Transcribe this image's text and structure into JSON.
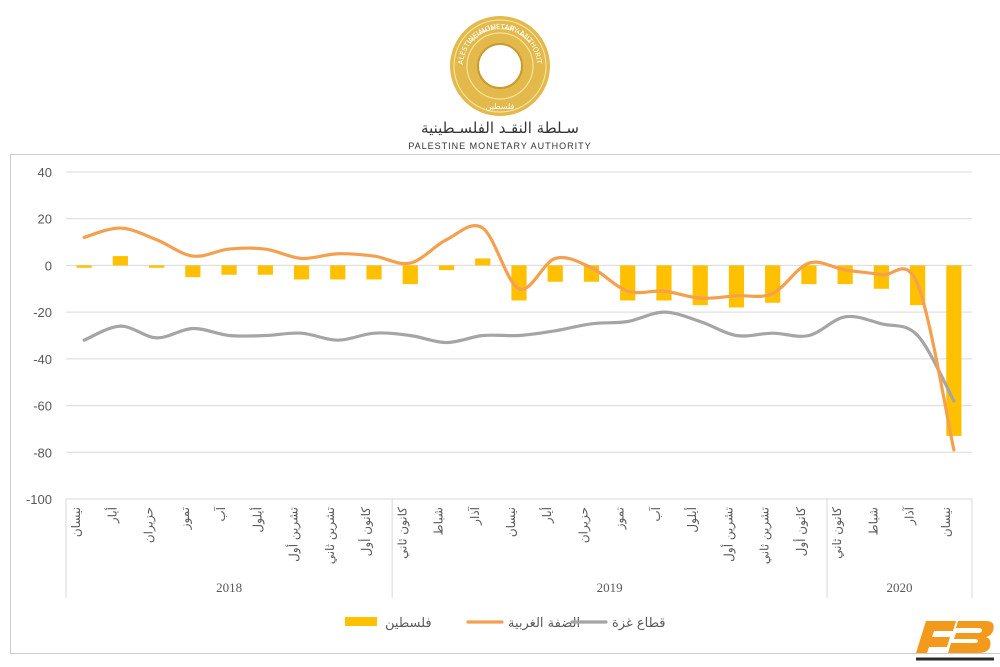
{
  "header": {
    "org_name_ar": "سـلطة النقـد الفلسـطينية",
    "org_name_en": "PALESTINE MONETARY AUTHORITY",
    "seal_text_ar": "سلطة النقد الفلسطينية",
    "seal_text_en": "PALESTINE MONETARY AUTHORITY",
    "seal_center_ar": "فلسطين"
  },
  "colors": {
    "palestine": "#FFC000",
    "west_bank": "#F4A04F",
    "gaza": "#A5A5A5",
    "grid": "#D9D9D9",
    "axis_text": "#595959",
    "seal_gold": "#D4A93A",
    "brand_orange": "#F39A1C"
  },
  "chart_data": {
    "type": "bar",
    "ylim": [
      -100,
      40
    ],
    "yticks": [
      "40",
      "20",
      "0",
      "-20",
      "-40",
      "-60",
      "-80",
      "-100"
    ],
    "yticks_values": [
      40,
      20,
      0,
      -20,
      -40,
      -60,
      -80,
      -100
    ],
    "grid": true,
    "legend_position": "bottom",
    "categories": [
      "نيسان",
      "أيار",
      "حزيران",
      "تموز",
      "آب",
      "أيلول",
      "تشرين أول",
      "تشرين ثاني",
      "كانون أول",
      "كانون ثاني",
      "شباط",
      "آذار",
      "نيسان",
      "أيار",
      "حزيران",
      "تموز",
      "آب",
      "أيلول",
      "تشرين أول",
      "تشرين ثاني",
      "كانون أول",
      "كانون ثاني",
      "شباط",
      "آذار",
      "نيسان"
    ],
    "year_groups": [
      {
        "label": "2018",
        "count": 9
      },
      {
        "label": "2019",
        "count": 12
      },
      {
        "label": "2020",
        "count": 4
      }
    ],
    "series": [
      {
        "name": "فلسطين",
        "type": "bar",
        "values": [
          -1,
          4,
          -1,
          -5,
          -4,
          -4,
          -6,
          -6,
          -6,
          -8,
          -2,
          3,
          -15,
          -7,
          -7,
          -15,
          -15,
          -17,
          -18,
          -16,
          -8,
          -8,
          -10,
          -17,
          -73
        ]
      },
      {
        "name": "الضفة الغربية",
        "type": "line",
        "values": [
          12,
          16,
          11,
          4,
          7,
          7,
          3,
          5,
          4,
          1,
          11,
          16,
          -10,
          3,
          -1,
          -11,
          -11,
          -14,
          -13,
          -12,
          1,
          -2,
          -4,
          -8,
          -79
        ]
      },
      {
        "name": "قطاع غزة",
        "type": "line",
        "values": [
          -32,
          -26,
          -31,
          -27,
          -30,
          -30,
          -29,
          -32,
          -29,
          -30,
          -33,
          -30,
          -30,
          -28,
          -25,
          -24,
          -20,
          -24,
          -30,
          -29,
          -30,
          -22,
          -25,
          -30,
          -58
        ]
      }
    ]
  }
}
